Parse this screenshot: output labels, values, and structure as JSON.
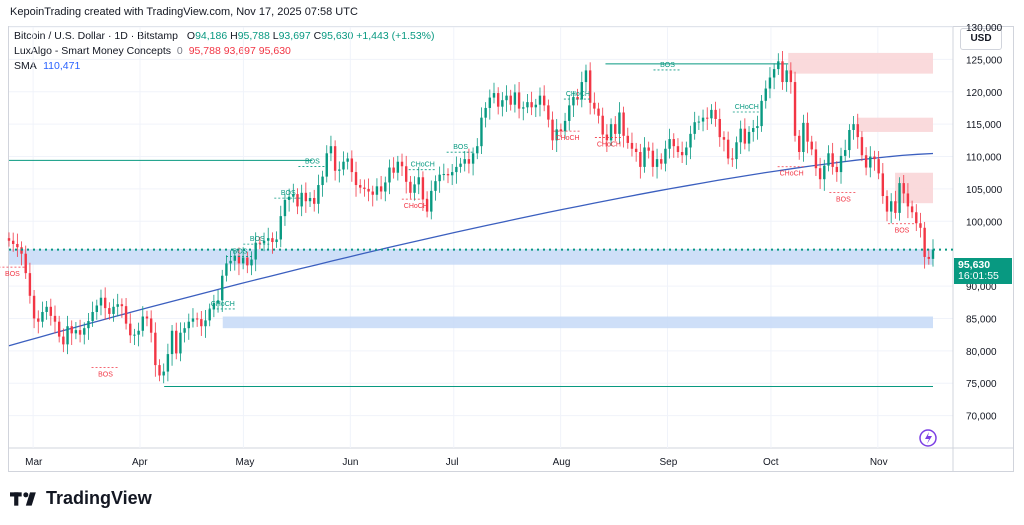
{
  "header": {
    "author": "KepoinTrading",
    "credit": "KepoinTrading created with TradingView.com, Nov 17, 2025 07:58 UTC"
  },
  "legend": {
    "symbol": "Bitcoin / U.S. Dollar · 1D · Bitstamp",
    "open_label": "O",
    "open": "94,186",
    "high_label": "H",
    "high": "95,788",
    "low_label": "L",
    "low": "93,697",
    "close_label": "C",
    "close": "95,630",
    "change": "+1,443 (+1.53%)",
    "indicator_name": "LuxAlgo - Smart Money Concepts",
    "indicator_icon": "0",
    "indicator_values": "95,788  93,697  95,630",
    "sma_name": "SMA",
    "sma_value": "110,471"
  },
  "currency": "USD",
  "price_tag": {
    "price": "95,630",
    "countdown": "16:01:55"
  },
  "brand": {
    "name": "TradingView"
  },
  "colors": {
    "up": "#089981",
    "down": "#f23645",
    "sma": "#3b5fbf",
    "demand_zone": "#c5d9f7",
    "supply_zone": "#f9d3d6",
    "bos_line": "#089981"
  },
  "chart_data": {
    "type": "candlestick",
    "title": "",
    "xlabel": "",
    "ylabel": "",
    "ylim": [
      65000,
      130000
    ],
    "y_ticks": [
      "130,000",
      "125,000",
      "120,000",
      "115,000",
      "110,000",
      "105,000",
      "100,000",
      "90,000",
      "85,000",
      "80,000",
      "75,000",
      "70,000"
    ],
    "x_ticks": [
      "Mar",
      "Apr",
      "May",
      "Jun",
      "Jul",
      "Aug",
      "Sep",
      "Oct",
      "Nov"
    ],
    "x_start": "2025-02-22",
    "x_end": "2025-11-17",
    "last_price": 95630,
    "series_close": [
      97000,
      96500,
      96000,
      95000,
      92000,
      88500,
      85000,
      84500,
      86000,
      86800,
      85400,
      84500,
      82200,
      81000,
      83800,
      82700,
      83200,
      82500,
      83500,
      84600,
      86000,
      87000,
      88200,
      86600,
      85700,
      86800,
      87200,
      86900,
      84200,
      82400,
      82500,
      83100,
      85300,
      85000,
      82800,
      77800,
      76200,
      76800,
      79500,
      83100,
      79600,
      82800,
      83500,
      84500,
      85000,
      84900,
      83800,
      84700,
      86400,
      87400,
      87800,
      91600,
      93500,
      93900,
      94700,
      93500,
      94400,
      93200,
      94100,
      96700,
      96600,
      97000,
      97400,
      96800,
      97200,
      100800,
      103300,
      103800,
      104200,
      102300,
      104400,
      103100,
      103600,
      102700,
      105600,
      106900,
      110500,
      111600,
      107800,
      108000,
      109200,
      109700,
      107600,
      105600,
      105200,
      105000,
      104600,
      104100,
      105400,
      104600,
      106000,
      108300,
      107500,
      109200,
      108500,
      106100,
      104400,
      105700,
      106800,
      103400,
      101500,
      104700,
      106200,
      107200,
      107300,
      107100,
      107600,
      108400,
      108900,
      109600,
      108900,
      110500,
      111600,
      116000,
      117500,
      119100,
      119800,
      117700,
      118700,
      119400,
      118000,
      119900,
      117400,
      117600,
      118400,
      117600,
      118000,
      119400,
      117900,
      115700,
      112500,
      114200,
      113900,
      115500,
      117900,
      119200,
      118800,
      121500,
      123300,
      118300,
      117400,
      116300,
      113400,
      112500,
      115000,
      113500,
      116800,
      113200,
      112100,
      111200,
      110700,
      108400,
      111400,
      110900,
      108400,
      109600,
      108900,
      111200,
      112700,
      111600,
      110700,
      110200,
      111400,
      113500,
      115300,
      115400,
      116000,
      115900,
      117200,
      115800,
      113000,
      112600,
      109700,
      109600,
      112200,
      114300,
      112000,
      113800,
      114400,
      114700,
      118600,
      120500,
      122200,
      123500,
      124700,
      121500,
      123300,
      121500,
      113200,
      110700,
      115200,
      112300,
      111100,
      108200,
      106500,
      108600,
      110500,
      108400,
      107600,
      110100,
      111000,
      114100,
      115000,
      113000,
      110200,
      108300,
      110000,
      109600,
      107400,
      103900,
      101500,
      103100,
      101300,
      105900,
      104300,
      102300,
      101400,
      99700,
      99000,
      94500,
      94200,
      95630
    ],
    "series": [
      {
        "name": "SMA",
        "values_start": 80800,
        "values_end": 110471
      }
    ],
    "annotations": [
      {
        "label": "BOS",
        "type": "bos",
        "color": "up",
        "x": "2025-05-21",
        "y": 109400
      },
      {
        "label": "BOS",
        "type": "bos",
        "color": "down",
        "x": "2025-02-23",
        "y": 92000
      },
      {
        "label": "BOS",
        "type": "bos",
        "color": "down",
        "x": "2025-03-22",
        "y": 76500
      },
      {
        "label": "BOS",
        "type": "bos",
        "color": "up",
        "x": "2025-04-30",
        "y": 95500
      },
      {
        "label": "BOS",
        "type": "bos",
        "color": "up",
        "x": "2025-05-05",
        "y": 97400
      },
      {
        "label": "BOS",
        "type": "bos",
        "color": "up",
        "x": "2025-05-14",
        "y": 104500
      },
      {
        "label": "CHoCH",
        "type": "choch",
        "color": "up",
        "x": "2025-04-25",
        "y": 87400
      },
      {
        "label": "CHoCH",
        "type": "choch",
        "color": "down",
        "x": "2025-06-20",
        "y": 102500
      },
      {
        "label": "CHoCH",
        "type": "choch",
        "color": "up",
        "x": "2025-06-22",
        "y": 108900
      },
      {
        "label": "BOS",
        "type": "bos",
        "color": "up",
        "x": "2025-07-03",
        "y": 111600
      },
      {
        "label": "CHoCH",
        "type": "choch",
        "color": "up",
        "x": "2025-08-06",
        "y": 119800
      },
      {
        "label": "CHoCH",
        "type": "choch",
        "color": "down",
        "x": "2025-08-03",
        "y": 113000
      },
      {
        "label": "CHoCH",
        "type": "choch",
        "color": "down",
        "x": "2025-08-15",
        "y": 112000
      },
      {
        "label": "BOS",
        "type": "bos",
        "color": "up",
        "x": "2025-09-01",
        "y": 124300
      },
      {
        "label": "CHoCH",
        "type": "choch",
        "color": "up",
        "x": "2025-09-24",
        "y": 117800
      },
      {
        "label": "CHoCH",
        "type": "choch",
        "color": "down",
        "x": "2025-10-07",
        "y": 107500
      },
      {
        "label": "BOS",
        "type": "bos",
        "color": "down",
        "x": "2025-10-22",
        "y": 103500
      },
      {
        "label": "BOS",
        "type": "bos",
        "color": "down",
        "x": "2025-11-08",
        "y": 98700
      }
    ],
    "zones": [
      {
        "type": "demand",
        "from": "2025-02-22",
        "to": "2025-11-17",
        "y_low": 93300,
        "y_high": 95700
      },
      {
        "type": "demand",
        "from": "2025-04-25",
        "to": "2025-11-17",
        "y_low": 83500,
        "y_high": 85300
      },
      {
        "type": "supply",
        "from": "2025-10-06",
        "to": "2025-11-17",
        "y_low": 122800,
        "y_high": 126000
      },
      {
        "type": "supply",
        "from": "2025-10-26",
        "to": "2025-11-17",
        "y_low": 113800,
        "y_high": 116000
      },
      {
        "type": "supply",
        "from": "2025-11-06",
        "to": "2025-11-17",
        "y_low": 102800,
        "y_high": 107500
      }
    ],
    "levels": [
      {
        "name": "bos-level-upper",
        "y": 109400,
        "from": "2025-02-22",
        "to": "2025-05-21"
      },
      {
        "name": "bos-level-peak",
        "y": 124300,
        "from": "2025-08-14",
        "to": "2025-10-06"
      },
      {
        "name": "bos-level-lower",
        "y": 74500,
        "from": "2025-04-08",
        "to": "2025-11-17"
      }
    ]
  }
}
